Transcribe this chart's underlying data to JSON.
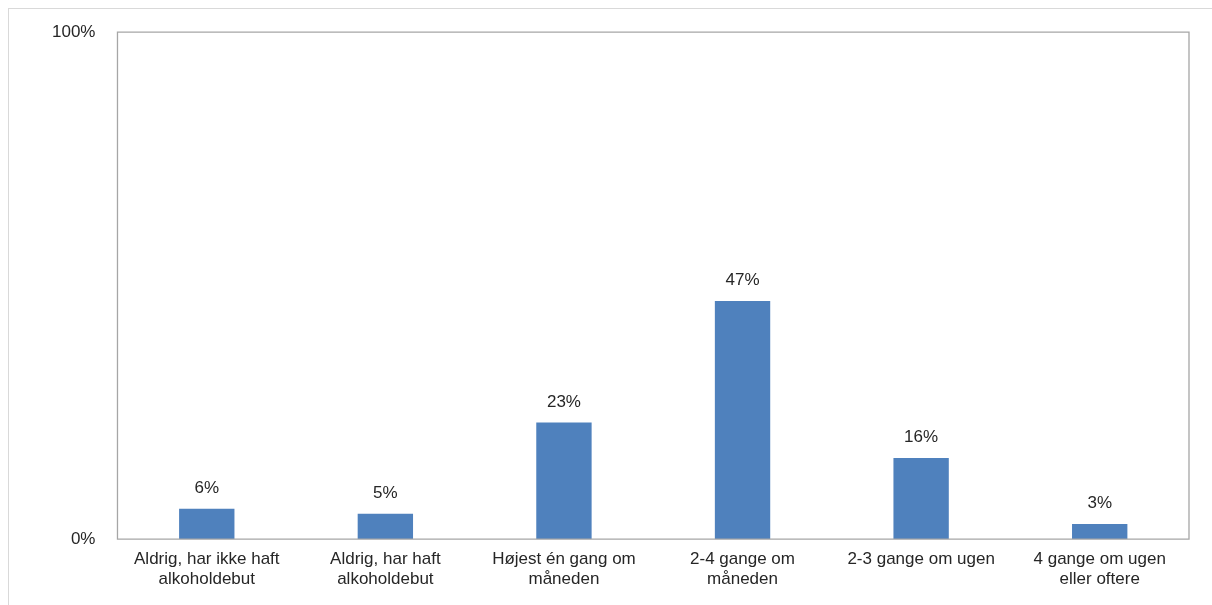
{
  "chart_data": {
    "type": "bar",
    "categories": [
      "Aldrig, har ikke haft alkoholdebut",
      "Aldrig, har haft alkoholdebut",
      "Højest én gang om måneden",
      "2-4 gange om måneden",
      "2-3 gange om ugen",
      "4 gange om ugen eller oftere"
    ],
    "values": [
      6,
      5,
      23,
      47,
      16,
      3
    ],
    "value_labels": [
      "6%",
      "5%",
      "23%",
      "47%",
      "16%",
      "3%"
    ],
    "color": "#4f81bd",
    "ylim": [
      0,
      100
    ],
    "yticks": [
      {
        "value": 0,
        "label": "0%"
      },
      {
        "value": 100,
        "label": "100%"
      }
    ],
    "grid": false,
    "legend": false
  }
}
